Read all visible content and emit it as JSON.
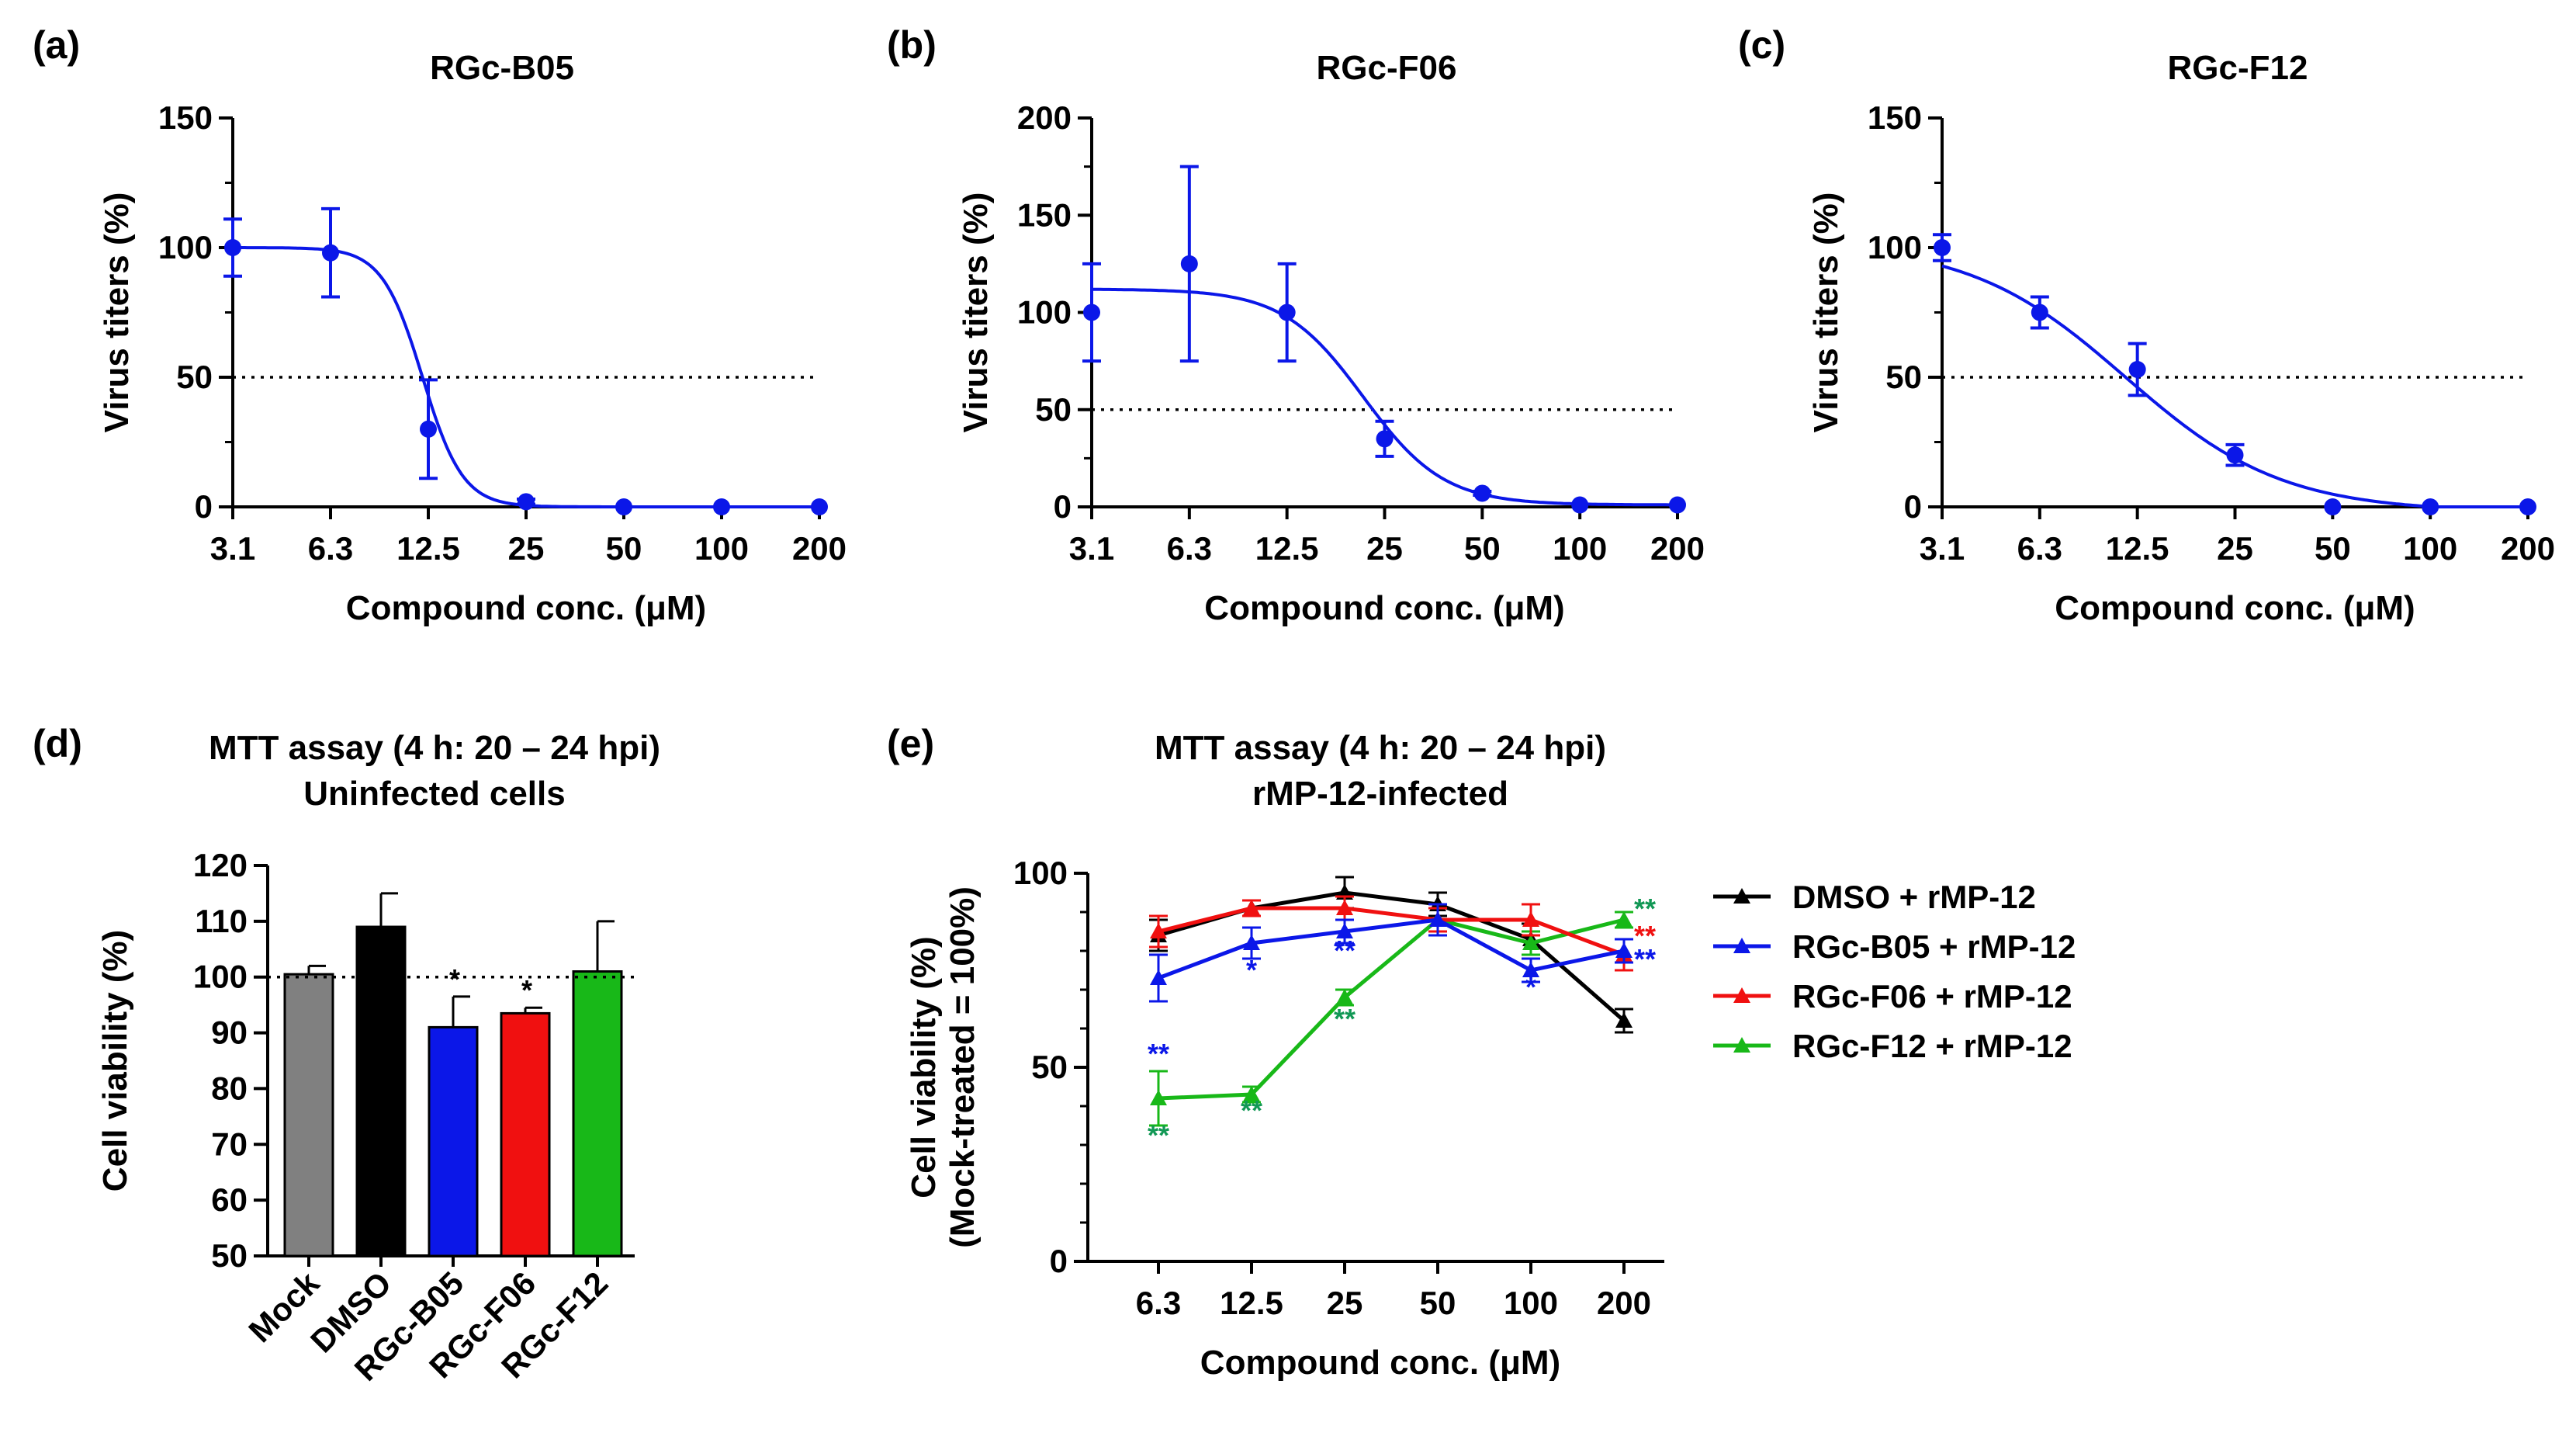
{
  "figure": {
    "background": "#ffffff"
  },
  "chart_data": [
    {
      "id": "a",
      "panel_label": "(a)",
      "type": "scatter",
      "title": "RGc-B05",
      "xlabel": "Compound conc. (μM)",
      "ylabel": "Virus titers (%)",
      "x_categories": [
        "3.1",
        "6.3",
        "12.5",
        "25",
        "50",
        "100",
        "200"
      ],
      "x": [
        3.125,
        6.25,
        12.5,
        25,
        50,
        100,
        200
      ],
      "y": [
        100,
        98,
        30,
        2,
        0,
        0,
        0
      ],
      "yerr": [
        11,
        17,
        19,
        1,
        0,
        0,
        0
      ],
      "ylim": [
        0,
        150
      ],
      "yticks": [
        0,
        50,
        100,
        150
      ],
      "reference_line": 50,
      "fit": {
        "top": 100,
        "bottom": 0,
        "ic50": 12.0,
        "hill": 7
      },
      "color": "#0b17e8"
    },
    {
      "id": "b",
      "panel_label": "(b)",
      "type": "scatter",
      "title": "RGc-F06",
      "xlabel": "Compound conc. (μM)",
      "ylabel": "Virus titers (%)",
      "x_categories": [
        "3.1",
        "6.3",
        "12.5",
        "25",
        "50",
        "100",
        "200"
      ],
      "x": [
        3.125,
        6.25,
        12.5,
        25,
        50,
        100,
        200
      ],
      "y": [
        100,
        125,
        100,
        35,
        7,
        1,
        1
      ],
      "yerr": [
        25,
        50,
        25,
        9,
        1,
        0,
        0
      ],
      "ylim": [
        0,
        200
      ],
      "yticks": [
        0,
        50,
        100,
        150,
        200
      ],
      "reference_line": 50,
      "fit": {
        "top": 112,
        "bottom": 1,
        "ic50": 21.5,
        "hill": 3.5
      },
      "color": "#0b17e8"
    },
    {
      "id": "c",
      "panel_label": "(c)",
      "type": "scatter",
      "title": "RGc-F12",
      "xlabel": "Compound conc. (μM)",
      "ylabel": "Virus titers (%)",
      "x_categories": [
        "3.1",
        "6.3",
        "12.5",
        "25",
        "50",
        "100",
        "200"
      ],
      "x": [
        3.125,
        6.25,
        12.5,
        25,
        50,
        100,
        200
      ],
      "y": [
        100,
        75,
        53,
        20,
        0,
        0,
        0
      ],
      "yerr": [
        5,
        6,
        10,
        4,
        0,
        0,
        0
      ],
      "ylim": [
        0,
        150
      ],
      "yticks": [
        0,
        50,
        100,
        150
      ],
      "reference_line": 50,
      "fit": {
        "top": 102,
        "bottom": -2,
        "ic50": 11.5,
        "hill": 1.8
      },
      "color": "#0b17e8"
    },
    {
      "id": "d",
      "panel_label": "(d)",
      "type": "bar",
      "title": "MTT assay (4 h: 20 – 24 hpi)",
      "subtitle": "Uninfected cells",
      "xlabel": "",
      "ylabel": "Cell viability (%)",
      "categories": [
        "Mock",
        "DMSO",
        "RGc-B05",
        "RGc-F06",
        "RGc-F12"
      ],
      "values": [
        100.5,
        109,
        91,
        93.5,
        101
      ],
      "errors": [
        1.5,
        6,
        5.5,
        1,
        9
      ],
      "colors": [
        "#808080",
        "#000000",
        "#0b17e8",
        "#f01010",
        "#18b818"
      ],
      "significance": [
        "",
        "",
        "*",
        "*",
        ""
      ],
      "ylim": [
        50,
        120
      ],
      "yticks": [
        50,
        60,
        70,
        80,
        90,
        100,
        110,
        120
      ],
      "reference_line": 100
    },
    {
      "id": "e",
      "panel_label": "(e)",
      "type": "line",
      "title": "MTT assay (4 h: 20 – 24 hpi)",
      "subtitle": "rMP-12-infected",
      "xlabel": "Compound conc. (μM)",
      "ylabel": "Cell viability (%)",
      "ylabel2": "(Mock-treated = 100%)",
      "categories": [
        "6.3",
        "12.5",
        "25",
        "50",
        "100",
        "200"
      ],
      "ylim": [
        0,
        100
      ],
      "yticks": [
        0,
        50,
        100
      ],
      "legend_position": "right",
      "series": [
        {
          "name": "DMSO + rMP-12",
          "color": "#000000",
          "values": [
            84,
            91,
            95,
            92,
            83,
            62
          ],
          "errors": [
            4,
            2,
            4,
            3,
            4,
            3
          ],
          "stars": [
            "",
            "",
            "",
            "",
            "",
            ""
          ],
          "star_color": "#000000"
        },
        {
          "name": "RGc-B05 + rMP-12",
          "color": "#0b17e8",
          "values": [
            73,
            82,
            85,
            88,
            75,
            80
          ],
          "errors": [
            6,
            4,
            3,
            4,
            3,
            3
          ],
          "stars": [
            "**",
            "*",
            "**",
            "",
            "*",
            "**"
          ],
          "star_color": "#0b17e8"
        },
        {
          "name": "RGc-F06 + rMP-12",
          "color": "#f01010",
          "values": [
            85,
            91,
            91,
            88,
            88,
            79
          ],
          "errors": [
            4,
            2,
            3,
            3,
            4,
            4
          ],
          "stars": [
            "",
            "",
            "",
            "",
            "",
            "**"
          ],
          "star_color": "#f01010"
        },
        {
          "name": "RGc-F12 + rMP-12",
          "color": "#18b818",
          "values": [
            42,
            43,
            68,
            88,
            82,
            88
          ],
          "errors": [
            7,
            2,
            2,
            3,
            3,
            2
          ],
          "stars": [
            "**",
            "**",
            "**",
            "",
            "",
            "**"
          ],
          "star_color": "#129855"
        }
      ]
    }
  ]
}
